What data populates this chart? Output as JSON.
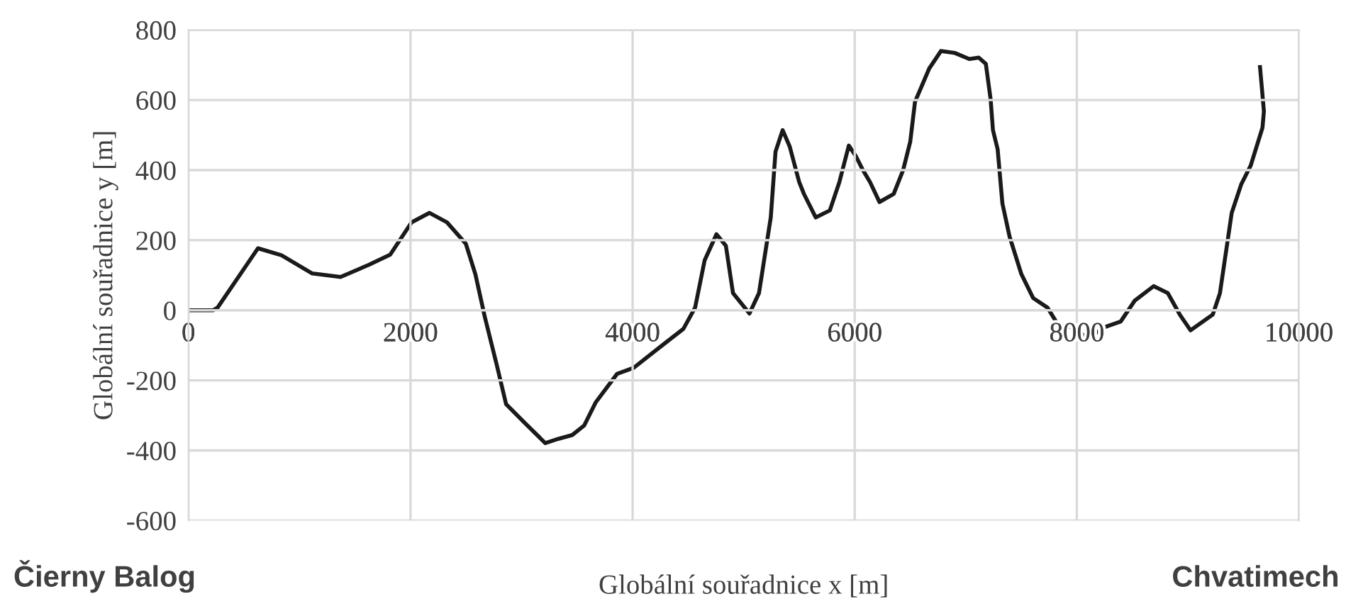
{
  "chart_data": {
    "type": "line",
    "xlabel": "Globální souřadnice x [m]",
    "ylabel": "Globální souřadnice y [m]",
    "annotations": [
      "Čierny Balog",
      "Chvatimech"
    ],
    "series": [
      {
        "color": "#1a1a1a",
        "x": [
          0,
          221,
          263,
          626,
          838,
          1115,
          1370,
          1626,
          1817,
          2009,
          2171,
          2328,
          2498,
          2584,
          2669,
          2775,
          2861,
          3031,
          3214,
          3329,
          3456,
          3563,
          3669,
          3861,
          4010,
          4266,
          4457,
          4563,
          4649,
          4755,
          4840,
          4904,
          5052,
          5138,
          5244,
          5287,
          5351,
          5415,
          5500,
          5543,
          5649,
          5776,
          5862,
          5947,
          6010,
          6074,
          6138,
          6223,
          6351,
          6436,
          6500,
          6543,
          6671,
          6777,
          6904,
          7032,
          7117,
          7181,
          7224,
          7245,
          7287,
          7330,
          7394,
          7501,
          7607,
          7735,
          7862,
          7948,
          8097,
          8267,
          8395,
          8523,
          8693,
          8820,
          8927,
          9024,
          9225,
          9289,
          9395,
          9480,
          9566,
          9672,
          9685,
          9650
        ],
        "values": [
          0,
          0,
          8,
          177,
          157,
          105,
          95,
          130,
          159,
          251,
          278,
          251,
          190,
          103,
          -19,
          -154,
          -268,
          -322,
          -379,
          -367,
          -356,
          -329,
          -262,
          -181,
          -164,
          -100,
          -53,
          8,
          143,
          217,
          184,
          49,
          -9,
          49,
          265,
          453,
          514,
          467,
          366,
          332,
          265,
          285,
          366,
          470,
          440,
          400,
          366,
          309,
          332,
          400,
          481,
          595,
          690,
          740,
          734,
          717,
          721,
          703,
          602,
          514,
          460,
          305,
          211,
          103,
          35,
          8,
          -57,
          -46,
          -79,
          -46,
          -32,
          28,
          69,
          49,
          -12,
          -57,
          -12,
          49,
          278,
          359,
          413,
          521,
          568,
          694
        ]
      }
    ],
    "xlim": [
      0,
      10000
    ],
    "xticks": [
      0,
      2000,
      4000,
      6000,
      8000,
      10000
    ],
    "ylim": [
      -600,
      800
    ],
    "yticks": [
      -600,
      -400,
      -200,
      0,
      200,
      400,
      600,
      800
    ],
    "grid": true,
    "legend": false,
    "marker": "none",
    "line_style": "solid"
  }
}
